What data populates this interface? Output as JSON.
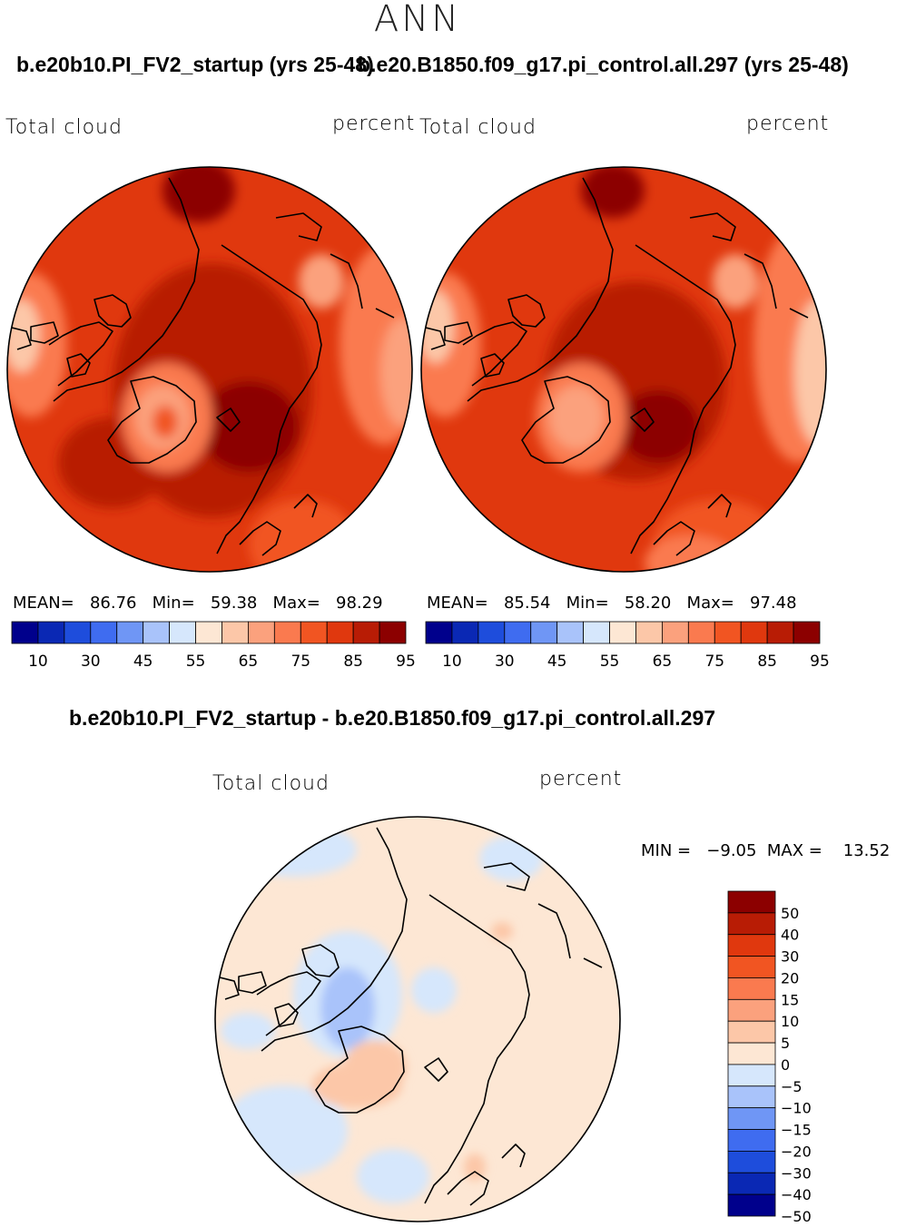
{
  "season": "ANN",
  "panels": [
    {
      "case_title": "b.e20b10.PI_FV2_startup (yrs 25-48)",
      "variable": "Total cloud",
      "units": "percent",
      "stats": {
        "mean_label": "MEAN=",
        "mean": "86.76",
        "min_label": "Min=",
        "min": "59.38",
        "max_label": "Max=",
        "max": "98.29"
      }
    },
    {
      "case_title": "b.e20.B1850.f09_g17.pi_control.all.297 (yrs 25-48)",
      "variable": "Total cloud",
      "units": "percent",
      "stats": {
        "mean_label": "MEAN=",
        "mean": "85.54",
        "min_label": "Min=",
        "min": "58.20",
        "max_label": "Max=",
        "max": "97.48"
      }
    }
  ],
  "colorbar_abs": {
    "colors": [
      "#00008c",
      "#0a28b4",
      "#1e4ddc",
      "#3f6cf0",
      "#6f96f5",
      "#a9c3fa",
      "#d6e7fc",
      "#fde7d4",
      "#fcc7a8",
      "#fba17d",
      "#fa7a4f",
      "#f15522",
      "#e0380e",
      "#b81c05",
      "#8c0000"
    ],
    "tick_labels": [
      "10",
      "30",
      "45",
      "55",
      "65",
      "75",
      "85",
      "95"
    ]
  },
  "difference": {
    "title": "b.e20b10.PI_FV2_startup - b.e20.B1850.f09_g17.pi_control.all.297",
    "variable": "Total cloud",
    "units": "percent",
    "min_label": "MIN =",
    "min": "−9.05",
    "max_label": "MAX =",
    "max": "13.52",
    "colorbar": {
      "colors": [
        "#8c0000",
        "#b81c05",
        "#e0380e",
        "#f15522",
        "#fa7a4f",
        "#fba17d",
        "#fcc7a8",
        "#fde7d4",
        "#d6e7fc",
        "#a9c3fa",
        "#6f96f5",
        "#3f6cf0",
        "#1e4ddc",
        "#0a28b4",
        "#00008c"
      ],
      "tick_labels": [
        "50",
        "40",
        "30",
        "20",
        "15",
        "10",
        "5",
        "0",
        "−5",
        "−10",
        "−15",
        "−20",
        "−30",
        "−40",
        "−50"
      ]
    }
  }
}
